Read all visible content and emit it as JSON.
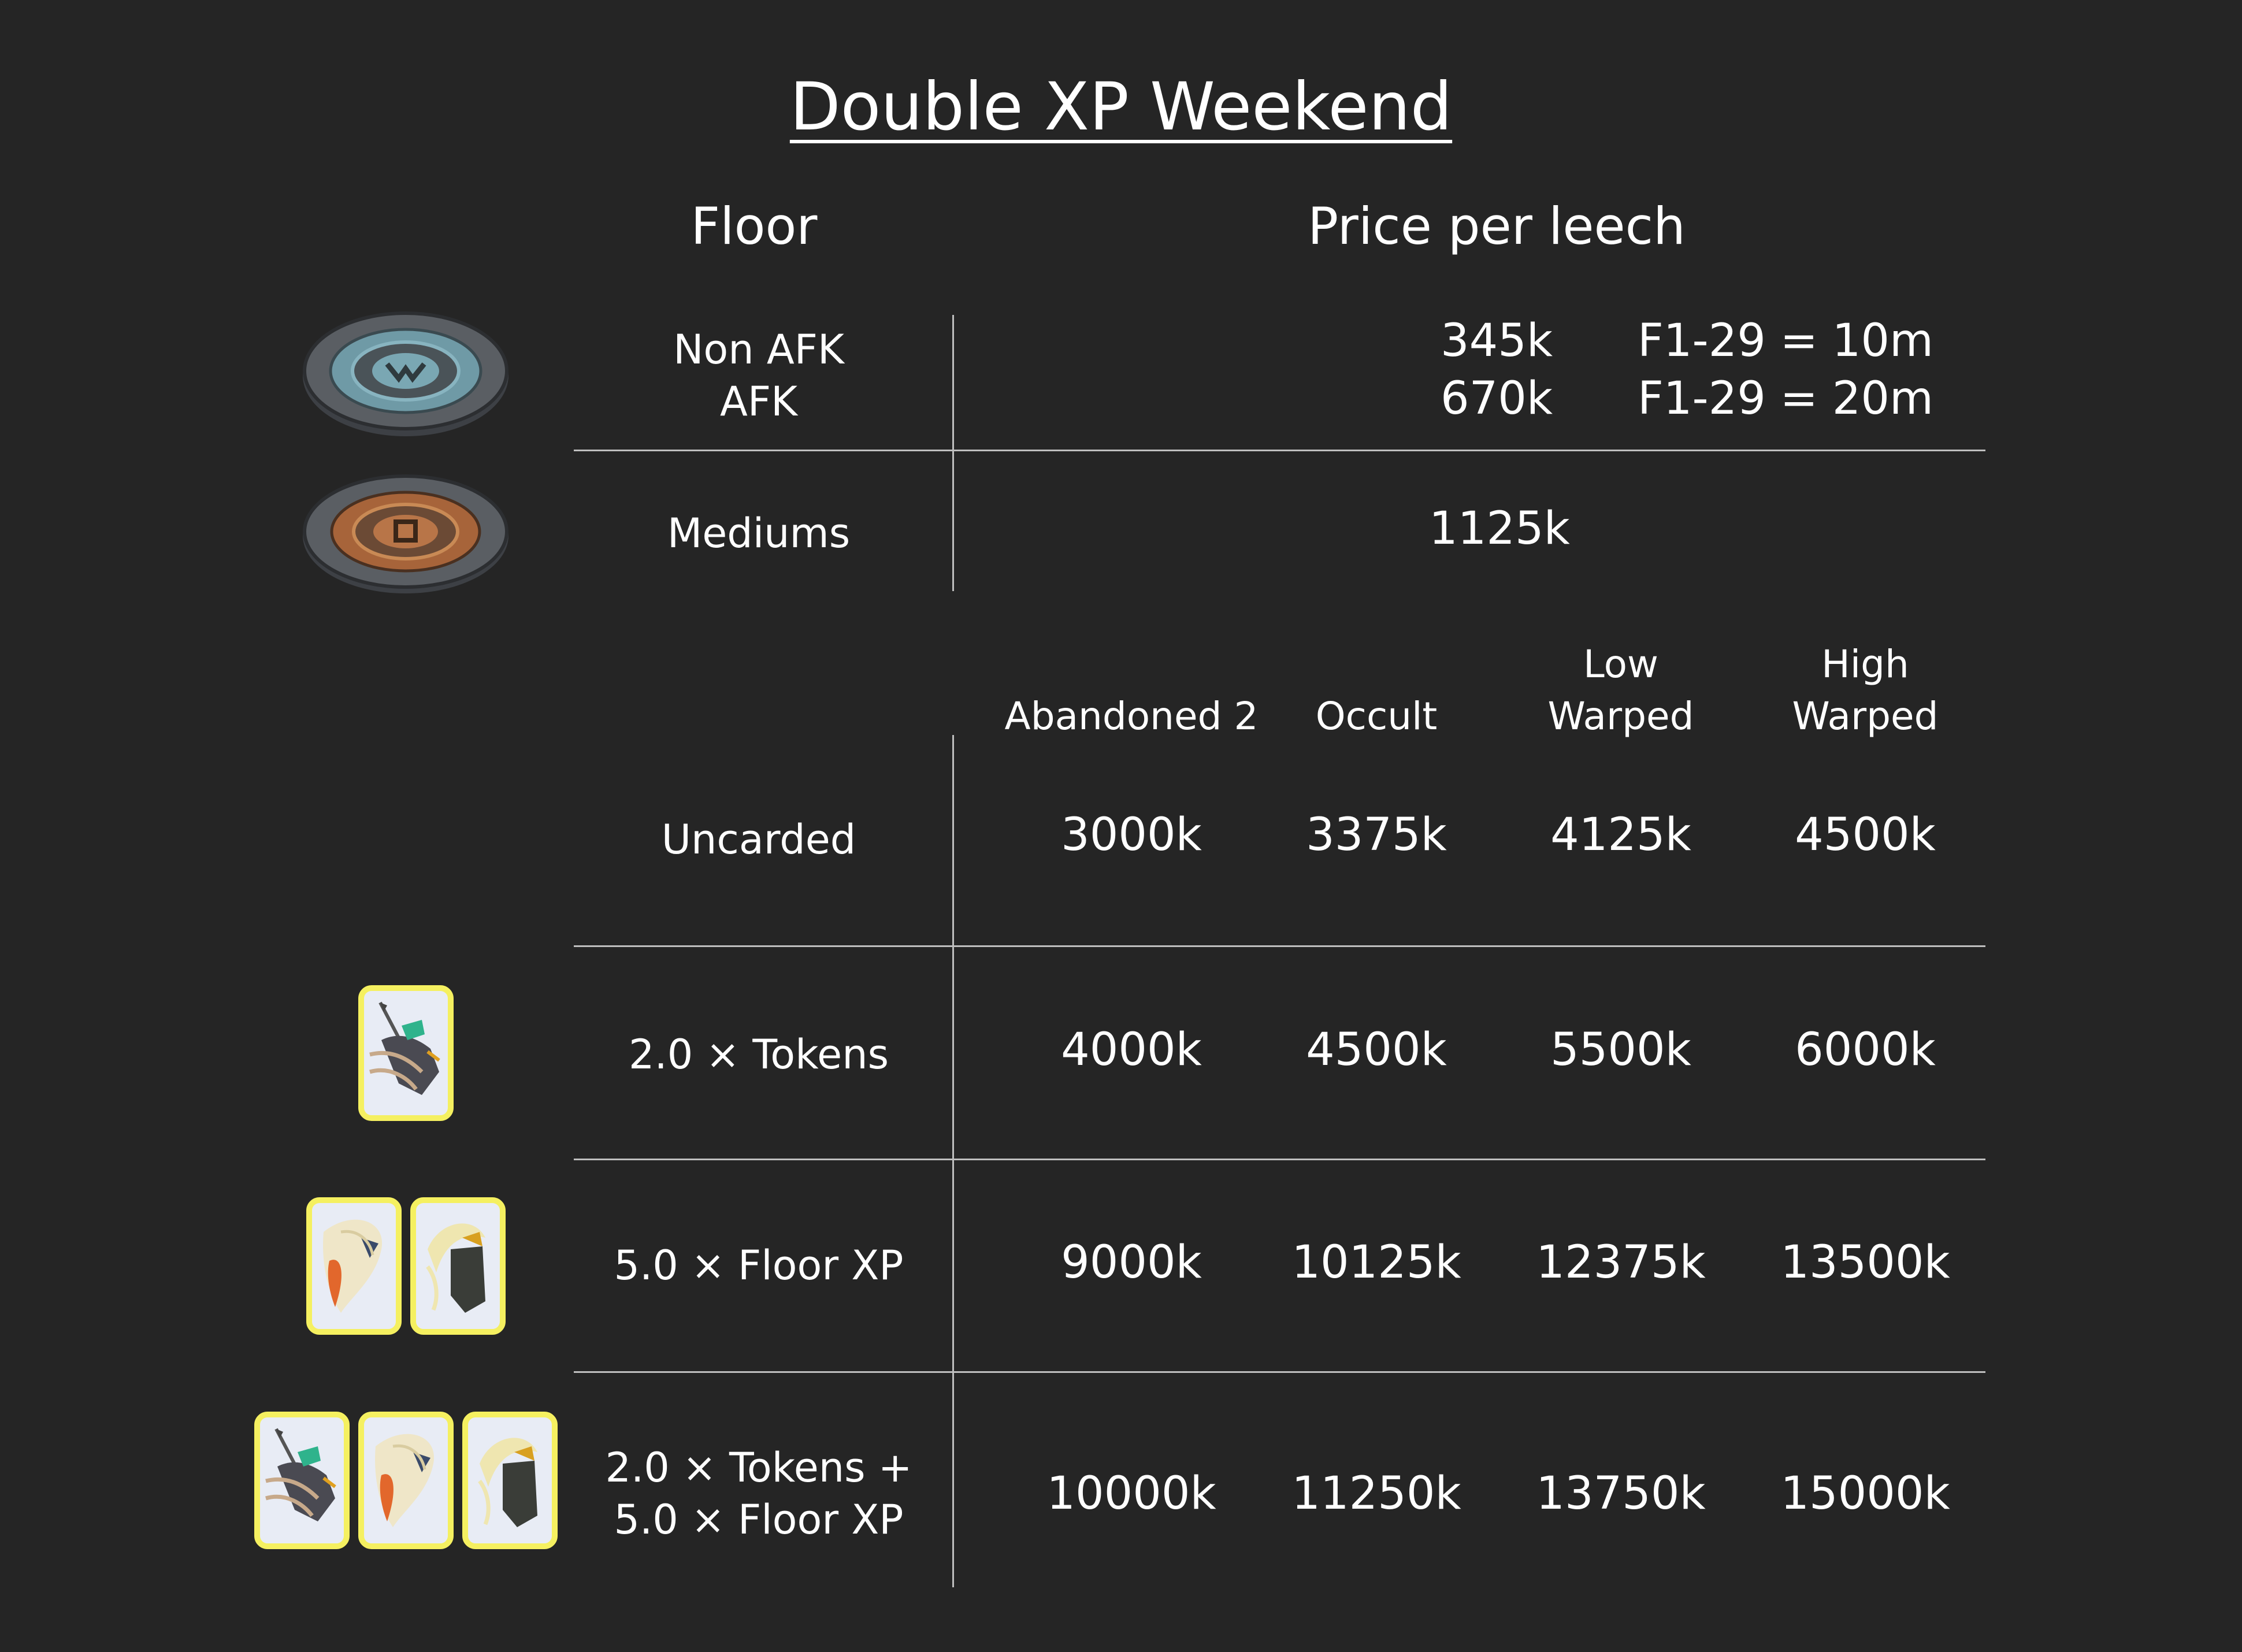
{
  "title": "Double XP Weekend",
  "headers": {
    "floor": "Floor",
    "price": "Price per leech"
  },
  "floor_section": {
    "rows": [
      {
        "label_lines": [
          "Non AFK",
          "AFK"
        ],
        "prices": [
          "345k",
          "670k"
        ],
        "notes": [
          "F1-29 = 10m",
          "F1-29 = 20m"
        ],
        "icon": "dungeoneering-portal-blue-icon"
      },
      {
        "label": "Mediums",
        "price": "1125k",
        "icon": "dungeoneering-portal-orange-icon"
      }
    ]
  },
  "column_headers": [
    {
      "lines": [
        "Abandoned 2"
      ]
    },
    {
      "lines": [
        "Occult"
      ]
    },
    {
      "lines": [
        "Low",
        "Warped"
      ]
    },
    {
      "lines": [
        "High",
        "Warped"
      ]
    }
  ],
  "table_rows": [
    {
      "label_lines": [
        "Uncarded"
      ],
      "values": [
        "3000k",
        "3375k",
        "4125k",
        "4500k"
      ],
      "cards": []
    },
    {
      "label_lines": [
        "2.0 × Tokens"
      ],
      "values": [
        "4000k",
        "4500k",
        "5500k",
        "6000k"
      ],
      "cards": [
        "token-card-icon"
      ]
    },
    {
      "label_lines": [
        "5.0 × Floor XP"
      ],
      "values": [
        "9000k",
        "10125k",
        "12375k",
        "13500k"
      ],
      "cards": [
        "floor-xp-card-orange-icon",
        "floor-xp-card-dark-icon"
      ]
    },
    {
      "label_lines": [
        "2.0 × Tokens +",
        "5.0 × Floor XP"
      ],
      "values": [
        "10000k",
        "11250k",
        "13750k",
        "15000k"
      ],
      "cards": [
        "token-card-icon",
        "floor-xp-card-orange-icon",
        "floor-xp-card-dark-icon"
      ]
    }
  ],
  "colors": {
    "background": "#252525",
    "text": "#ffffff",
    "lines": "#bfbfbf",
    "card_border": "#f5f060",
    "card_fill": "#e8ecf5"
  }
}
